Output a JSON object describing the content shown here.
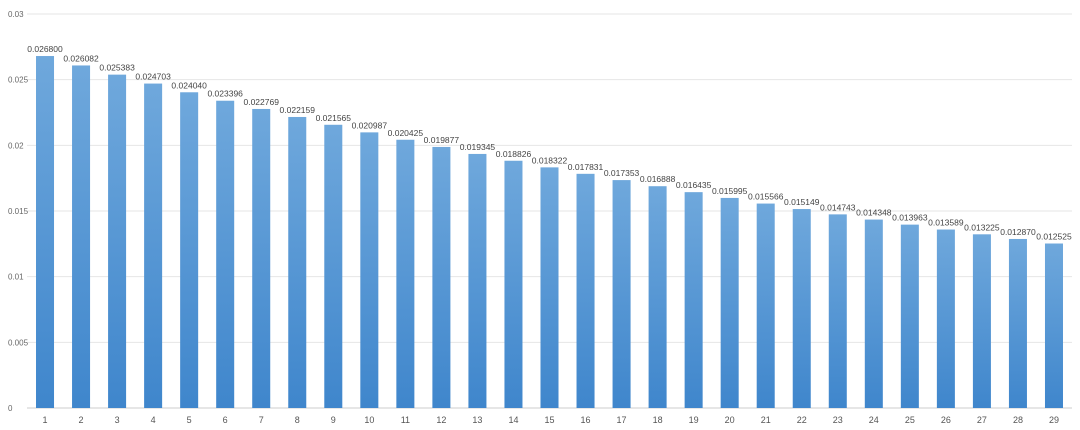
{
  "chart_data": {
    "type": "bar",
    "categories": [
      "1",
      "2",
      "3",
      "4",
      "5",
      "6",
      "7",
      "8",
      "9",
      "10",
      "11",
      "12",
      "13",
      "14",
      "15",
      "16",
      "17",
      "18",
      "19",
      "20",
      "21",
      "22",
      "23",
      "24",
      "25",
      "26",
      "27",
      "28",
      "29"
    ],
    "values": [
      0.0268,
      0.026082,
      0.025383,
      0.024703,
      0.02404,
      0.023396,
      0.022769,
      0.022159,
      0.021565,
      0.020987,
      0.020425,
      0.019877,
      0.019345,
      0.018826,
      0.018322,
      0.017831,
      0.017353,
      0.016888,
      0.016435,
      0.015995,
      0.015566,
      0.015149,
      0.014743,
      0.014348,
      0.013963,
      0.013589,
      0.013225,
      0.01287,
      0.012525
    ],
    "data_labels": [
      "0.026800",
      "0.026082",
      "0.025383",
      "0.024703",
      "0.024040",
      "0.023396",
      "0.022769",
      "0.022159",
      "0.021565",
      "0.020987",
      "0.020425",
      "0.019877",
      "0.019345",
      "0.018826",
      "0.018322",
      "0.017831",
      "0.017353",
      "0.016888",
      "0.016435",
      "0.015995",
      "0.015566",
      "0.015149",
      "0.014743",
      "0.014348",
      "0.013963",
      "0.013589",
      "0.013225",
      "0.012870",
      "0.012525"
    ],
    "y_ticks": [
      0,
      0.005,
      0.01,
      0.015,
      0.02,
      0.025,
      0.03
    ],
    "y_tick_labels": [
      "0",
      "0.005",
      "0.01",
      "0.015",
      "0.02",
      "0.025",
      "0.03"
    ],
    "ylim": [
      0,
      0.03
    ],
    "title": "",
    "xlabel": "",
    "ylabel": "",
    "grid": true,
    "legend": "none",
    "colors": {
      "bar_top": "#6fa8dc",
      "bar_bottom": "#3f86cc",
      "grid": "#e6e6e6",
      "text": "#555555"
    }
  }
}
